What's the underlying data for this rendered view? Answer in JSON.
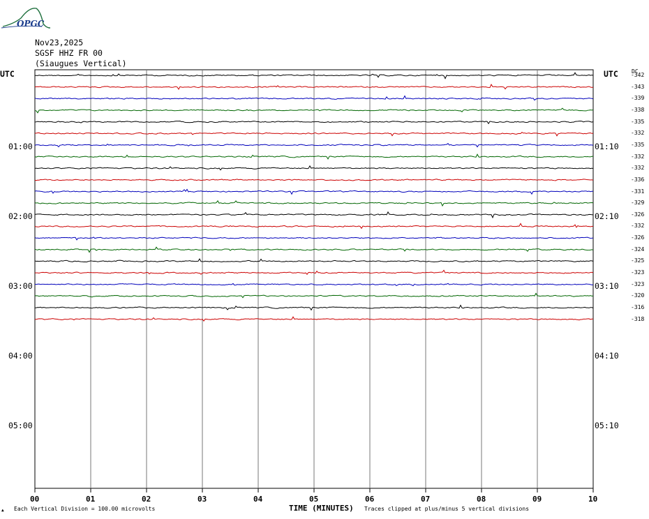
{
  "logo": {
    "text": "OPGC",
    "color": "#1d6f3c"
  },
  "header": {
    "date": "Nov23,2025",
    "station": "SGSF HHZ FR 00",
    "site": "(Siaugues Vertical)"
  },
  "utc_left": "UTC",
  "utc_right": "UTC",
  "dc_label": "DC",
  "left_time_labels": [
    "01:00",
    "02:00",
    "03:00",
    "04:00",
    "05:00"
  ],
  "right_time_labels": [
    "01:10",
    "02:10",
    "03:10",
    "04:10",
    "05:10"
  ],
  "footer": {
    "division": "Each Vertical Division = 100.00 microvolts",
    "axis_title": "TIME (MINUTES)",
    "clip_note": "Traces clipped at plus/minus 5 vertical divisions"
  },
  "chart_data": {
    "type": "line",
    "xlabel": "TIME (MINUTES)",
    "x_ticks": [
      "00",
      "01",
      "02",
      "03",
      "04",
      "05",
      "06",
      "07",
      "08",
      "09",
      "10"
    ],
    "xlim": [
      0,
      10
    ],
    "grid": true,
    "trace_colors": [
      "#000000",
      "#cc0000",
      "#0000bb",
      "#006600"
    ],
    "dc_offsets": [
      "-342",
      "-343",
      "-339",
      "-338",
      "-335",
      "-332",
      "-335",
      "-332",
      "-332",
      "-336",
      "-331",
      "-329",
      "-326",
      "-332",
      "-326",
      "-324",
      "-325",
      "-323",
      "-323",
      "-320",
      "-316",
      "-318"
    ]
  }
}
